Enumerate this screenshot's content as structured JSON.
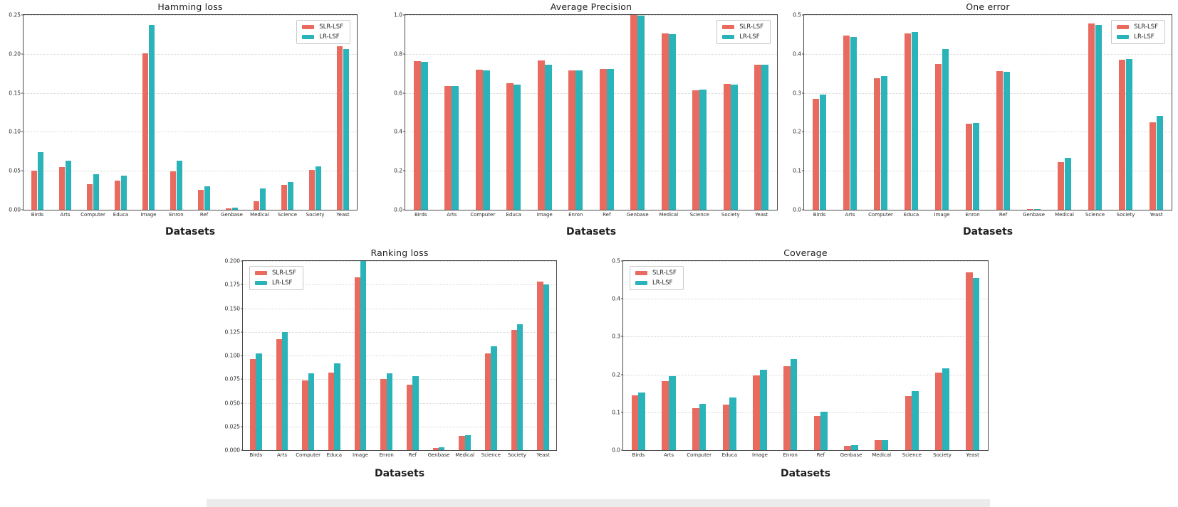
{
  "colors": {
    "slr_lsf": "#e96b5f",
    "lr_lsf": "#2ab3b9",
    "gridline": "#d6d6d6",
    "axis": "#4a4a4a"
  },
  "chart_data": [
    {
      "type": "bar",
      "title": "Hamming loss",
      "xlabel": "Datasets",
      "categories": [
        "Birds",
        "Arts",
        "Computer",
        "Educa",
        "Image",
        "Enron",
        "Ref",
        "Genbase",
        "Medical",
        "Science",
        "Society",
        "Yeast"
      ],
      "series": [
        {
          "name": "SLR-LSF",
          "color": "#e96b5f",
          "values": [
            0.05,
            0.055,
            0.033,
            0.037,
            0.201,
            0.049,
            0.026,
            0.002,
            0.011,
            0.032,
            0.051,
            0.21
          ]
        },
        {
          "name": "LR-LSF",
          "color": "#2ab3b9",
          "values": [
            0.074,
            0.063,
            0.046,
            0.044,
            0.237,
            0.063,
            0.03,
            0.003,
            0.027,
            0.036,
            0.056,
            0.206
          ]
        }
      ],
      "ylim": [
        0,
        0.25
      ],
      "yticks": [
        0,
        0.05,
        0.1,
        0.15,
        0.2,
        0.25
      ],
      "ytick_labels": [
        "0.00",
        "0.05",
        "0.10",
        "0.15",
        "0.20",
        "0.25"
      ],
      "legend_pos": "top-right",
      "grid": "horizontal-dotted"
    },
    {
      "type": "bar",
      "title": "Average Precision",
      "xlabel": "Datasets",
      "categories": [
        "Birds",
        "Arts",
        "Computer",
        "Educa",
        "Image",
        "Enron",
        "Ref",
        "Genbase",
        "Medical",
        "Science",
        "Society",
        "Yeast"
      ],
      "series": [
        {
          "name": "SLR-LSF",
          "color": "#e96b5f",
          "values": [
            0.762,
            0.635,
            0.72,
            0.648,
            0.768,
            0.714,
            0.722,
            1.0,
            0.905,
            0.615,
            0.645,
            0.745
          ]
        },
        {
          "name": "LR-LSF",
          "color": "#2ab3b9",
          "values": [
            0.76,
            0.636,
            0.715,
            0.641,
            0.744,
            0.715,
            0.722,
            0.995,
            0.9,
            0.616,
            0.641,
            0.746
          ]
        }
      ],
      "ylim": [
        0,
        1.0
      ],
      "yticks": [
        0,
        0.2,
        0.4,
        0.6,
        0.8,
        1.0
      ],
      "ytick_labels": [
        "0.0",
        "0.2",
        "0.4",
        "0.6",
        "0.8",
        "1.0"
      ],
      "legend_pos": "top-right",
      "grid": "horizontal-dotted"
    },
    {
      "type": "bar",
      "title": "One error",
      "xlabel": "Datasets",
      "categories": [
        "Birds",
        "Arts",
        "Computer",
        "Educa",
        "Image",
        "Enron",
        "Ref",
        "Genbase",
        "Medical",
        "Science",
        "Society",
        "Yeast"
      ],
      "series": [
        {
          "name": "SLR-LSF",
          "color": "#e96b5f",
          "values": [
            0.285,
            0.447,
            0.338,
            0.452,
            0.375,
            0.22,
            0.355,
            0.001,
            0.122,
            0.478,
            0.385,
            0.225
          ]
        },
        {
          "name": "LR-LSF",
          "color": "#2ab3b9",
          "values": [
            0.295,
            0.443,
            0.343,
            0.457,
            0.412,
            0.222,
            0.354,
            0.002,
            0.133,
            0.474,
            0.387,
            0.24
          ]
        }
      ],
      "ylim": [
        0,
        0.5
      ],
      "yticks": [
        0,
        0.1,
        0.2,
        0.3,
        0.4,
        0.5
      ],
      "ytick_labels": [
        "0.0",
        "0.1",
        "0.2",
        "0.3",
        "0.4",
        "0.5"
      ],
      "legend_pos": "top-right",
      "grid": "horizontal-dotted"
    },
    {
      "type": "bar",
      "title": "Ranking loss",
      "xlabel": "Datasets",
      "categories": [
        "Birds",
        "Arts",
        "Computer",
        "Educa",
        "Image",
        "Enron",
        "Ref",
        "Genbase",
        "Medical",
        "Science",
        "Society",
        "Yeast"
      ],
      "series": [
        {
          "name": "SLR-LSF",
          "color": "#e96b5f",
          "values": [
            0.096,
            0.117,
            0.074,
            0.082,
            0.183,
            0.075,
            0.069,
            0.002,
            0.015,
            0.102,
            0.127,
            0.178
          ]
        },
        {
          "name": "LR-LSF",
          "color": "#2ab3b9",
          "values": [
            0.102,
            0.125,
            0.081,
            0.092,
            0.2,
            0.081,
            0.078,
            0.003,
            0.016,
            0.11,
            0.133,
            0.175
          ]
        }
      ],
      "ylim": [
        0,
        0.2
      ],
      "yticks": [
        0,
        0.025,
        0.05,
        0.075,
        0.1,
        0.125,
        0.15,
        0.175,
        0.2
      ],
      "ytick_labels": [
        "0.000",
        "0.025",
        "0.050",
        "0.075",
        "0.100",
        "0.125",
        "0.150",
        "0.175",
        "0.200"
      ],
      "legend_pos": "top-left",
      "grid": "horizontal-dotted"
    },
    {
      "type": "bar",
      "title": "Coverage",
      "xlabel": "Datasets",
      "categories": [
        "Birds",
        "Arts",
        "Computer",
        "Educa",
        "Image",
        "Enron",
        "Ref",
        "Genbase",
        "Medical",
        "Science",
        "Society",
        "Yeast"
      ],
      "series": [
        {
          "name": "SLR-LSF",
          "color": "#e96b5f",
          "values": [
            0.145,
            0.183,
            0.111,
            0.121,
            0.198,
            0.222,
            0.09,
            0.012,
            0.026,
            0.143,
            0.204,
            0.47
          ]
        },
        {
          "name": "LR-LSF",
          "color": "#2ab3b9",
          "values": [
            0.152,
            0.196,
            0.122,
            0.139,
            0.212,
            0.24,
            0.101,
            0.013,
            0.027,
            0.156,
            0.216,
            0.455
          ]
        }
      ],
      "ylim": [
        0,
        0.5
      ],
      "yticks": [
        0,
        0.1,
        0.2,
        0.3,
        0.4,
        0.5
      ],
      "ytick_labels": [
        "0.0",
        "0.1",
        "0.2",
        "0.3",
        "0.4",
        "0.5"
      ],
      "legend_pos": "top-left",
      "grid": "horizontal-dotted"
    }
  ]
}
